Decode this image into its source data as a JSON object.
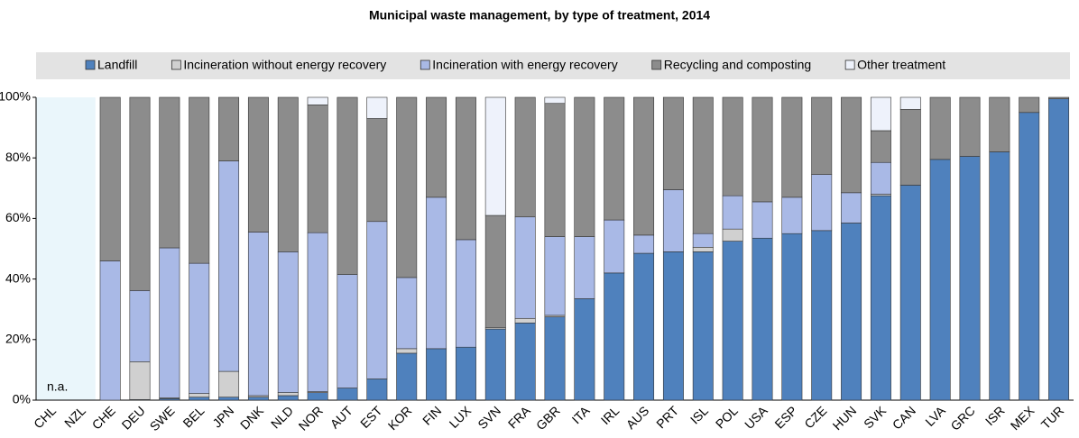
{
  "chart_data": {
    "type": "stacked_bar",
    "title": "Municipal waste management, by type of treatment, 2014",
    "annotation": "n.a.",
    "categories": [
      "CHL",
      "NZL",
      "CHE",
      "DEU",
      "SWE",
      "BEL",
      "JPN",
      "DNK",
      "NLD",
      "NOR",
      "AUT",
      "EST",
      "KOR",
      "FIN",
      "LUX",
      "SVN",
      "FRA",
      "GBR",
      "ITA",
      "IRL",
      "AUS",
      "PRT",
      "ISL",
      "POL",
      "USA",
      "ESP",
      "CZE",
      "HUN",
      "SVK",
      "CAN",
      "LVA",
      "GRC",
      "ISR",
      "MEX",
      "TUR"
    ],
    "series": [
      {
        "name": "Landfill",
        "color": "#4f81bd",
        "values": [
          null,
          null,
          0,
          0.2,
          0.5,
          1,
          1,
          1,
          1.5,
          2.5,
          4,
          7,
          15.5,
          17,
          17.5,
          23.5,
          25.5,
          27.5,
          33.5,
          42,
          48.5,
          49,
          49,
          52.5,
          53.5,
          55,
          56,
          58.5,
          67.5,
          71,
          79.5,
          80.5,
          82,
          95,
          99.5
        ]
      },
      {
        "name": "Incineration without energy recovery",
        "color": "#d0d0d0",
        "values": [
          null,
          null,
          0,
          12.5,
          0.3,
          1.2,
          8.5,
          0.5,
          1,
          0.3,
          0,
          0,
          1.5,
          0,
          0,
          0.5,
          1.5,
          0.5,
          0,
          0,
          0,
          0,
          1.5,
          4,
          0,
          0,
          0,
          0,
          0.5,
          0,
          0,
          0,
          0,
          0,
          0
        ]
      },
      {
        "name": "Incineration with energy recovery",
        "color": "#a9b9e6",
        "values": [
          null,
          null,
          46,
          23.5,
          49.5,
          43,
          69.5,
          54,
          46.5,
          52.5,
          37.5,
          52,
          23.5,
          50,
          35.5,
          0,
          33.5,
          26,
          20.5,
          17.5,
          6,
          20.5,
          4.5,
          11,
          12,
          12,
          18.5,
          10,
          10.5,
          0,
          0,
          0,
          0,
          0,
          0
        ]
      },
      {
        "name": "Recycling and composting",
        "color": "#8c8c8c",
        "values": [
          null,
          null,
          54,
          63.8,
          49.7,
          54.8,
          21,
          44.5,
          51,
          42.2,
          58.5,
          34,
          59.5,
          33,
          47,
          37,
          39.5,
          44,
          46,
          40.5,
          45.5,
          30.5,
          45,
          32.5,
          34.5,
          33,
          25.5,
          31.5,
          10.5,
          25,
          20.5,
          19.5,
          18,
          5,
          0.5
        ]
      },
      {
        "name": "Other treatment",
        "color": "#eef2fb",
        "values": [
          null,
          null,
          0,
          0,
          0,
          0,
          0,
          0,
          0,
          2.5,
          0,
          7,
          0,
          0,
          0,
          39,
          0,
          2,
          0,
          0,
          0,
          0,
          0,
          0,
          0,
          0,
          0,
          0,
          11,
          4,
          0,
          0,
          0,
          0,
          0
        ]
      }
    ],
    "ylim": [
      0,
      100
    ],
    "yticks": [
      {
        "value": 0,
        "label": "0%"
      },
      {
        "value": 20,
        "label": "20%"
      },
      {
        "value": 40,
        "label": "40%"
      },
      {
        "value": 60,
        "label": "60%"
      },
      {
        "value": 80,
        "label": "80%"
      },
      {
        "value": 100,
        "label": "100%"
      }
    ],
    "legend": "top"
  }
}
